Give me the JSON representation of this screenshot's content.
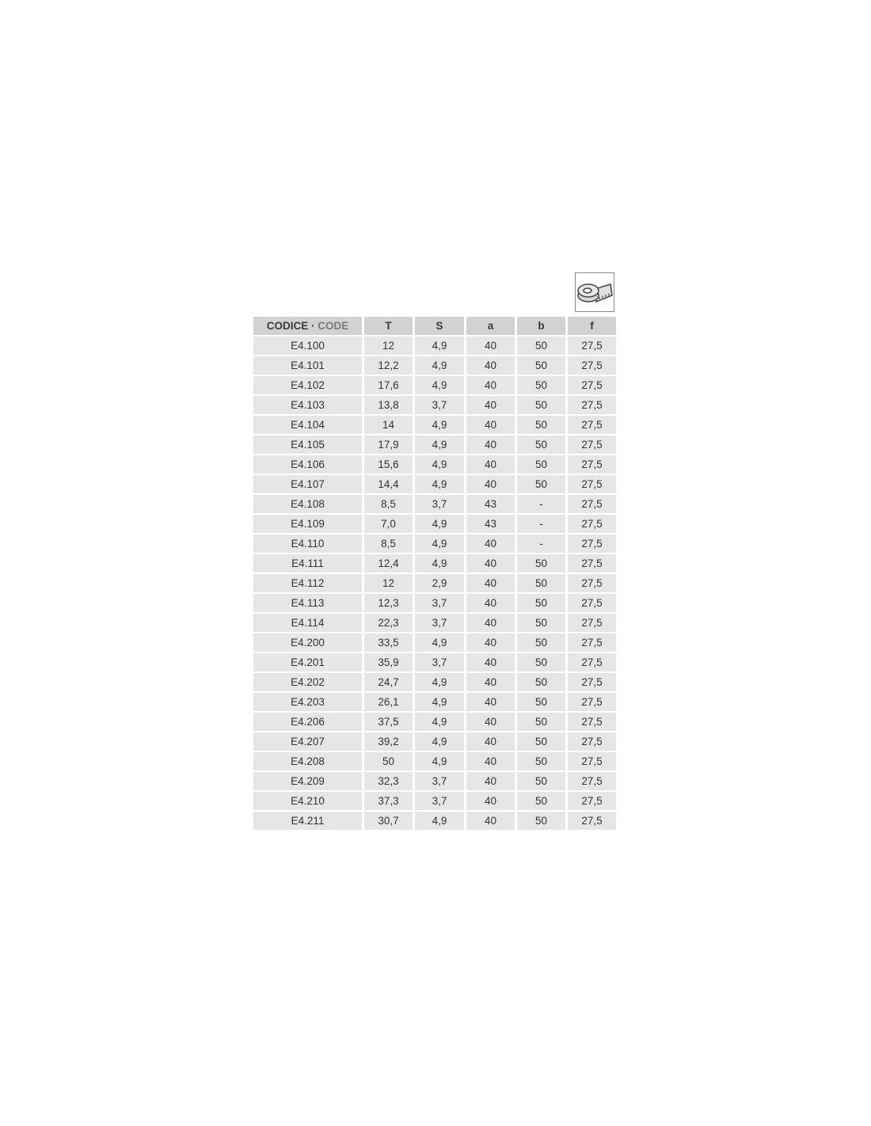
{
  "icon": "measuring-tape-icon",
  "colors": {
    "header_bg": "#d2d2d2",
    "row_bg": "#e6e6e6",
    "text": "#333333",
    "code_en": "#7a7a7a"
  },
  "table": {
    "header": {
      "codice": "CODICE",
      "separator": " · ",
      "code": "CODE",
      "cols": [
        "T",
        "S",
        "a",
        "b",
        "f"
      ]
    },
    "rows": [
      [
        "E4.100",
        "12",
        "4,9",
        "40",
        "50",
        "27,5"
      ],
      [
        "E4.101",
        "12,2",
        "4,9",
        "40",
        "50",
        "27,5"
      ],
      [
        "E4.102",
        "17,6",
        "4,9",
        "40",
        "50",
        "27,5"
      ],
      [
        "E4.103",
        "13,8",
        "3,7",
        "40",
        "50",
        "27,5"
      ],
      [
        "E4.104",
        "14",
        "4,9",
        "40",
        "50",
        "27,5"
      ],
      [
        "E4.105",
        "17,9",
        "4,9",
        "40",
        "50",
        "27,5"
      ],
      [
        "E4.106",
        "15,6",
        "4,9",
        "40",
        "50",
        "27,5"
      ],
      [
        "E4.107",
        "14,4",
        "4,9",
        "40",
        "50",
        "27,5"
      ],
      [
        "E4.108",
        "8,5",
        "3,7",
        "43",
        "-",
        "27,5"
      ],
      [
        "E4.109",
        "7,0",
        "4,9",
        "43",
        "-",
        "27,5"
      ],
      [
        "E4.110",
        "8,5",
        "4,9",
        "40",
        "-",
        "27,5"
      ],
      [
        "E4.111",
        "12,4",
        "4,9",
        "40",
        "50",
        "27,5"
      ],
      [
        "E4.112",
        "12",
        "2,9",
        "40",
        "50",
        "27,5"
      ],
      [
        "E4.113",
        "12,3",
        "3,7",
        "40",
        "50",
        "27,5"
      ],
      [
        "E4.114",
        "22,3",
        "3,7",
        "40",
        "50",
        "27,5"
      ],
      [
        "E4.200",
        "33,5",
        "4,9",
        "40",
        "50",
        "27,5"
      ],
      [
        "E4.201",
        "35,9",
        "3,7",
        "40",
        "50",
        "27,5"
      ],
      [
        "E4.202",
        "24,7",
        "4,9",
        "40",
        "50",
        "27,5"
      ],
      [
        "E4.203",
        "26,1",
        "4,9",
        "40",
        "50",
        "27,5"
      ],
      [
        "E4.206",
        "37,5",
        "4,9",
        "40",
        "50",
        "27,5"
      ],
      [
        "E4.207",
        "39,2",
        "4,9",
        "40",
        "50",
        "27,5"
      ],
      [
        "E4.208",
        "50",
        "4,9",
        "40",
        "50",
        "27,5"
      ],
      [
        "E4.209",
        "32,3",
        "3,7",
        "40",
        "50",
        "27,5"
      ],
      [
        "E4.210",
        "37,3",
        "3,7",
        "40",
        "50",
        "27,5"
      ],
      [
        "E4.211",
        "30,7",
        "4,9",
        "40",
        "50",
        "27,5"
      ]
    ]
  }
}
